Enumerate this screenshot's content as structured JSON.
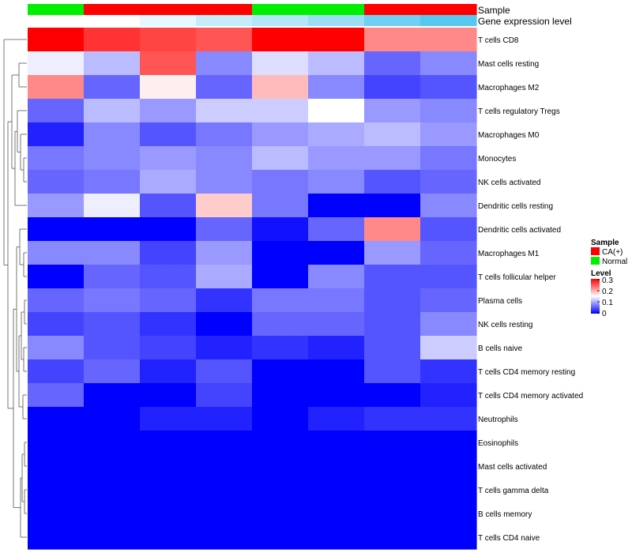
{
  "chart_data": {
    "type": "heatmap",
    "annotation_tracks": [
      {
        "name": "Sample",
        "values": [
          "Normal",
          "CA(+)",
          "CA(+)",
          "CA(+)",
          "Normal",
          "Normal",
          "CA(+)",
          "CA(+)"
        ]
      },
      {
        "name": "Gene expression level",
        "values": [
          0.0,
          0.0,
          0.15,
          0.35,
          0.45,
          0.6,
          0.85,
          1.0
        ]
      }
    ],
    "rows": [
      "T cells CD8",
      "Mast cells resting",
      "Macrophages M2",
      "T cells regulatory  Tregs",
      "Macrophages M0",
      "Monocytes",
      "NK cells activated",
      "Dendritic cells resting",
      "Dendritic cells activated",
      "Macrophages M1",
      "T cells follicular helper",
      "Plasma cells",
      "NK cells resting",
      "B cells naive",
      "T cells CD4 memory resting",
      "T cells CD4 memory activated",
      "Neutrophils",
      "Eosinophils",
      "Mast cells activated",
      "T cells gamma delta",
      "B cells memory",
      "T cells CD4 naive"
    ],
    "values": [
      [
        0.3,
        0.27,
        0.26,
        0.25,
        0.3,
        0.3,
        0.22,
        0.22
      ],
      [
        0.14,
        0.11,
        0.25,
        0.08,
        0.13,
        0.11,
        0.06,
        0.08
      ],
      [
        0.22,
        0.06,
        0.16,
        0.06,
        0.19,
        0.08,
        0.04,
        0.05
      ],
      [
        0.06,
        0.11,
        0.09,
        0.12,
        0.12,
        0.15,
        0.09,
        0.08
      ],
      [
        0.02,
        0.08,
        0.05,
        0.07,
        0.09,
        0.1,
        0.11,
        0.09
      ],
      [
        0.07,
        0.08,
        0.09,
        0.08,
        0.11,
        0.09,
        0.09,
        0.07
      ],
      [
        0.06,
        0.07,
        0.1,
        0.08,
        0.07,
        0.08,
        0.05,
        0.06
      ],
      [
        0.09,
        0.14,
        0.05,
        0.18,
        0.07,
        0.0,
        0.0,
        0.08
      ],
      [
        0.0,
        0.0,
        0.0,
        0.06,
        0.01,
        0.06,
        0.22,
        0.05
      ],
      [
        0.08,
        0.08,
        0.04,
        0.09,
        0.0,
        0.0,
        0.09,
        0.06
      ],
      [
        0.0,
        0.06,
        0.05,
        0.1,
        0.0,
        0.08,
        0.05,
        0.05
      ],
      [
        0.06,
        0.07,
        0.06,
        0.03,
        0.07,
        0.07,
        0.05,
        0.06
      ],
      [
        0.04,
        0.05,
        0.03,
        0.0,
        0.06,
        0.06,
        0.05,
        0.08
      ],
      [
        0.08,
        0.05,
        0.04,
        0.02,
        0.03,
        0.02,
        0.05,
        0.12
      ],
      [
        0.04,
        0.06,
        0.02,
        0.05,
        0.0,
        0.0,
        0.05,
        0.03
      ],
      [
        0.06,
        0.0,
        0.0,
        0.04,
        0.0,
        0.0,
        0.0,
        0.02
      ],
      [
        0.0,
        0.0,
        0.02,
        0.02,
        0.0,
        0.02,
        0.03,
        0.03
      ],
      [
        0.0,
        0.0,
        0.0,
        0.0,
        0.0,
        0.0,
        0.0,
        0.0
      ],
      [
        0.0,
        0.0,
        0.0,
        0.0,
        0.0,
        0.0,
        0.0,
        0.0
      ],
      [
        0.0,
        0.0,
        0.0,
        0.0,
        0.0,
        0.0,
        0.0,
        0.0
      ],
      [
        0.0,
        0.0,
        0.0,
        0.0,
        0.0,
        0.0,
        0.0,
        0.0
      ],
      [
        0.0,
        0.0,
        0.0,
        0.0,
        0.0,
        0.0,
        0.0,
        0.0
      ]
    ],
    "legend": {
      "sample_title": "Sample",
      "sample_items": [
        {
          "label": "CA(+)",
          "color": "#ff0000"
        },
        {
          "label": "Normal",
          "color": "#00ee00"
        }
      ],
      "level_title": "Level",
      "level_ticks": [
        "0.3",
        "0.2",
        "0.1",
        "0"
      ],
      "level_range": [
        0,
        0.3
      ]
    },
    "colors": {
      "low": "#0000ff",
      "mid": "#ffffff",
      "high": "#ff0000",
      "gene_low": "#ffffff",
      "gene_high": "#56c8f0",
      "dendrogram": "#555555"
    }
  }
}
